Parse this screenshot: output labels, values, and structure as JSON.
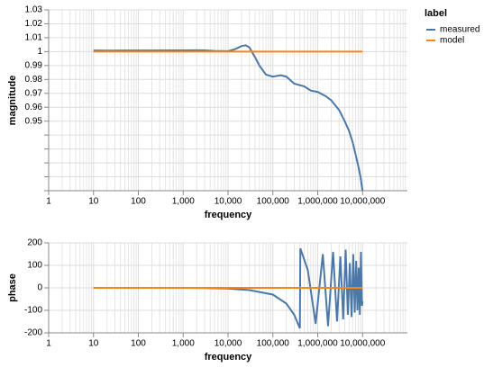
{
  "chart_data": [
    {
      "type": "line",
      "ylabel": "magnitude",
      "xlabel": "frequency",
      "xscale": "log",
      "grid": true,
      "legend_title": "label",
      "legend_position": "right",
      "xlim": [
        1,
        100000000
      ],
      "xticks": [
        1,
        10,
        100,
        {
          "value": 1000,
          "label": "1,000"
        },
        {
          "value": 10000,
          "label": "10,000"
        },
        {
          "value": 100000,
          "label": "100,000"
        },
        {
          "value": 1000000,
          "label": "1,000,000"
        },
        {
          "value": 10000000,
          "label": "10,000,000"
        }
      ],
      "ylim": [
        0.9,
        1.03
      ],
      "yticks": [
        0.95,
        0.96,
        0.97,
        0.98,
        0.99,
        1,
        1.01,
        1.02,
        1.03
      ],
      "yminor": [
        0.9,
        0.91,
        0.92,
        0.93,
        0.94
      ],
      "series": [
        {
          "name": "measured",
          "color": "#4c78a8",
          "x": [
            10,
            20,
            50,
            100,
            200,
            500,
            1000,
            2000,
            3000,
            5000,
            10000,
            15000,
            20000,
            25000,
            30000,
            40000,
            50000,
            70000,
            100000,
            150000,
            200000,
            300000,
            500000,
            700000,
            1000000,
            1500000,
            2000000,
            3000000,
            4000000,
            5000000,
            6000000,
            7000000,
            8000000,
            9000000,
            10000000
          ],
          "values": [
            1.0008,
            1.0007,
            1.0008,
            1.0008,
            1.0008,
            1.0009,
            1.0009,
            1.001,
            1.0009,
            1.0005,
            1.0003,
            1.002,
            1.004,
            1.0045,
            1.003,
            0.996,
            0.99,
            0.9835,
            0.982,
            0.983,
            0.982,
            0.977,
            0.975,
            0.972,
            0.971,
            0.968,
            0.965,
            0.958,
            0.95,
            0.943,
            0.935,
            0.926,
            0.918,
            0.91,
            0.9
          ]
        },
        {
          "name": "model",
          "color": "#f58518",
          "x": [
            10,
            10000000
          ],
          "values": [
            1,
            1
          ]
        }
      ]
    },
    {
      "type": "line",
      "ylabel": "phase",
      "xlabel": "frequency",
      "xscale": "log",
      "grid": true,
      "xlim": [
        1,
        100000000
      ],
      "xticks": [
        1,
        10,
        100,
        {
          "value": 1000,
          "label": "1,000"
        },
        {
          "value": 10000,
          "label": "10,000"
        },
        {
          "value": 100000,
          "label": "100,000"
        },
        {
          "value": 1000000,
          "label": "1,000,000"
        },
        {
          "value": 10000000,
          "label": "10,000,000"
        }
      ],
      "ylim": [
        -200,
        200
      ],
      "yticks": [
        -200,
        -100,
        0,
        100,
        200
      ],
      "series": [
        {
          "name": "measured",
          "color": "#4c78a8",
          "x": [
            10,
            100,
            1000,
            3000,
            10000,
            30000,
            100000,
            200000,
            300000,
            400000,
            410000,
            600000,
            900000,
            1300000,
            1700000,
            2200000,
            2700000,
            3200000,
            3700000,
            4200000,
            4700000,
            5200000,
            5700000,
            6200000,
            6700000,
            7200000,
            7700000,
            8200000,
            8700000,
            9200000,
            9700000,
            10000000
          ],
          "values": [
            0,
            0,
            0,
            -1,
            -3,
            -10,
            -30,
            -70,
            -120,
            -180,
            175,
            80,
            -160,
            150,
            -170,
            160,
            -150,
            140,
            -140,
            170,
            -120,
            110,
            -130,
            150,
            -110,
            120,
            -100,
            90,
            -120,
            160,
            -80,
            -60
          ]
        },
        {
          "name": "model",
          "color": "#f58518",
          "x": [
            10,
            10000000
          ],
          "values": [
            0,
            0
          ]
        }
      ]
    }
  ]
}
